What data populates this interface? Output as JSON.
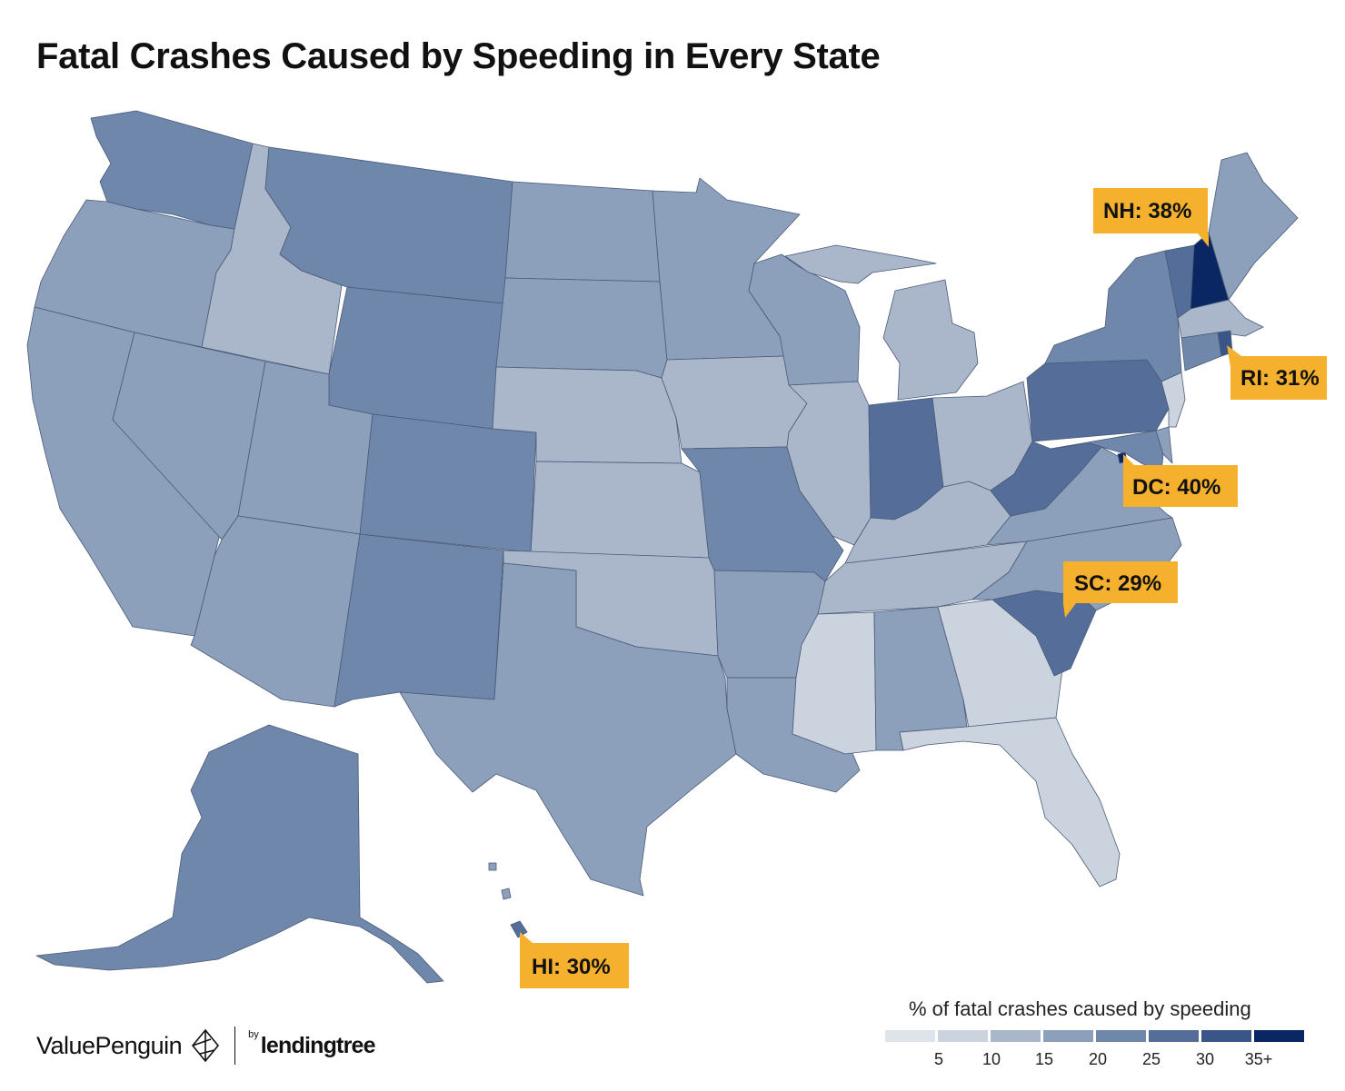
{
  "title": "Fatal Crashes Caused by Speeding in Every State",
  "colors": {
    "shade_5": "#dfe4eb",
    "shade_10": "#cbd3df",
    "shade_15": "#aab7cb",
    "shade_20": "#8c9fbb",
    "shade_25": "#6f87aa",
    "shade_30": "#556e99",
    "shade_35": "#3a5688",
    "shade_35_plus": "#0b2763",
    "callout": "#f5b12d",
    "border": "#4a5a78"
  },
  "callouts": [
    {
      "label": "NH: 38%",
      "state": "NH"
    },
    {
      "label": "RI: 31%",
      "state": "RI"
    },
    {
      "label": "DC: 40%",
      "state": "DC"
    },
    {
      "label": "SC: 29%",
      "state": "SC"
    },
    {
      "label": "HI: 30%",
      "state": "HI"
    }
  ],
  "legend": {
    "title": "% of fatal crashes caused by speeding",
    "ticks": [
      "5",
      "10",
      "15",
      "20",
      "25",
      "30",
      "35+"
    ]
  },
  "brand": {
    "valuepenguin": "ValuePenguin",
    "by": "by",
    "lendingtree": "lendingtree"
  }
}
